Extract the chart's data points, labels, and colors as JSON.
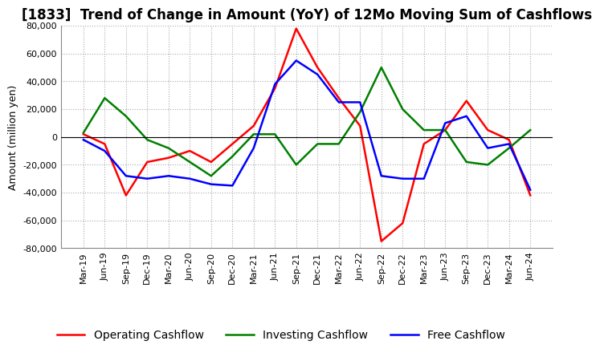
{
  "title": "[1833]  Trend of Change in Amount (YoY) of 12Mo Moving Sum of Cashflows",
  "ylabel": "Amount (million yen)",
  "ylim": [
    -80000,
    80000
  ],
  "yticks": [
    -80000,
    -60000,
    -40000,
    -20000,
    0,
    20000,
    40000,
    60000,
    80000
  ],
  "x_labels": [
    "Mar-19",
    "Jun-19",
    "Sep-19",
    "Dec-19",
    "Mar-20",
    "Jun-20",
    "Sep-20",
    "Dec-20",
    "Mar-21",
    "Jun-21",
    "Sep-21",
    "Dec-21",
    "Mar-22",
    "Jun-22",
    "Sep-22",
    "Dec-22",
    "Mar-23",
    "Jun-23",
    "Sep-23",
    "Dec-23",
    "Mar-24",
    "Jun-24"
  ],
  "operating_cashflow": [
    2000,
    -5000,
    -42000,
    -18000,
    -15000,
    -10000,
    -18000,
    -5000,
    8000,
    35000,
    78000,
    50000,
    28000,
    8000,
    -75000,
    -62000,
    -5000,
    5000,
    26000,
    5000,
    -2000,
    -42000
  ],
  "investing_cashflow": [
    3000,
    28000,
    15000,
    -2000,
    -8000,
    -18000,
    -28000,
    -14000,
    2000,
    2000,
    -20000,
    -5000,
    -5000,
    18000,
    50000,
    20000,
    5000,
    5000,
    -18000,
    -20000,
    -8000,
    5000
  ],
  "free_cashflow": [
    -2000,
    -10000,
    -28000,
    -30000,
    -28000,
    -30000,
    -34000,
    -35000,
    -8000,
    38000,
    55000,
    45000,
    25000,
    25000,
    -28000,
    -30000,
    -30000,
    10000,
    15000,
    -8000,
    -5000,
    -38000
  ],
  "operating_color": "#ff0000",
  "investing_color": "#008000",
  "free_color": "#0000ff",
  "background_color": "#ffffff",
  "grid_color": "#aaaaaa",
  "title_fontsize": 12,
  "legend_fontsize": 10,
  "tick_fontsize": 8,
  "ylabel_fontsize": 9
}
